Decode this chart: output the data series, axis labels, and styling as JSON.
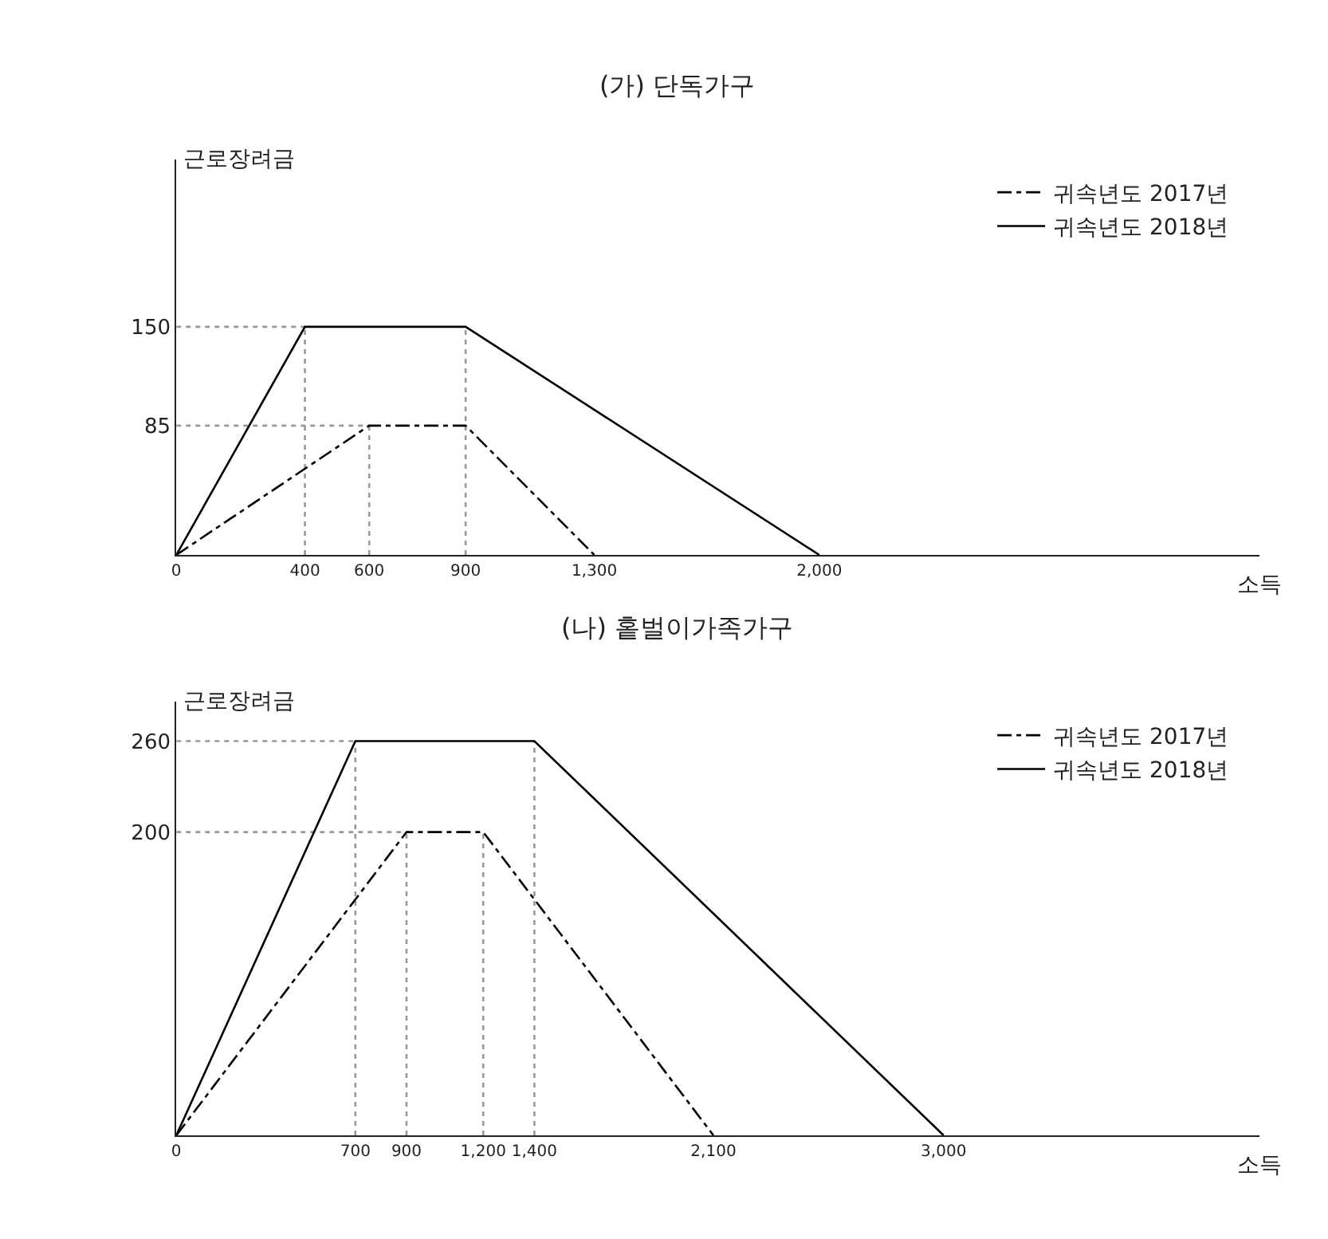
{
  "chart_data": [
    {
      "type": "line",
      "title": "(가) 단독가구",
      "xlabel": "소득",
      "ylabel": "근로장려금",
      "xlim": [
        0,
        3370
      ],
      "ylim": [
        0,
        260
      ],
      "xticks": [
        0,
        400,
        600,
        900,
        {
          "value": 1300,
          "label": "1,300"
        },
        {
          "value": 2000,
          "label": "2,000"
        }
      ],
      "yticks": [
        85,
        150
      ],
      "legend": "top right",
      "series": [
        {
          "color": "#999999",
          "line_style": "dotted",
          "x": [
            0,
            400
          ],
          "values": [
            150,
            150
          ]
        },
        {
          "color": "#999999",
          "line_style": "dotted",
          "x": [
            0,
            600
          ],
          "values": [
            85,
            85
          ]
        },
        {
          "color": "#999999",
          "line_style": "dotted",
          "x": [
            400,
            400
          ],
          "values": [
            0,
            150
          ]
        },
        {
          "color": "#999999",
          "line_style": "dotted",
          "x": [
            600,
            600
          ],
          "values": [
            0,
            85
          ]
        },
        {
          "color": "#999999",
          "line_style": "dotted",
          "x": [
            900,
            900
          ],
          "values": [
            0,
            150
          ]
        },
        {
          "name": "귀속년도 2017년",
          "color": "#000000",
          "line_style": "dashdot",
          "x": [
            0,
            600,
            900,
            1300
          ],
          "values": [
            0,
            85,
            85,
            0
          ]
        },
        {
          "name": "귀속년도 2018년",
          "color": "#000000",
          "line_style": "solid",
          "x": [
            0,
            400,
            900,
            2000
          ],
          "values": [
            0,
            150,
            150,
            0
          ]
        }
      ]
    },
    {
      "type": "line",
      "title": "(나) 홑벌이가족가구",
      "xlabel": "소득",
      "ylabel": "근로장려금",
      "xlim": [
        0,
        4236
      ],
      "ylim": [
        0,
        286
      ],
      "xticks": [
        0,
        700,
        900,
        {
          "value": 1200,
          "label": "1,200"
        },
        {
          "value": 1400,
          "label": "1,400"
        },
        {
          "value": 2100,
          "label": "2,100"
        },
        {
          "value": 3000,
          "label": "3,000"
        }
      ],
      "yticks": [
        200,
        260
      ],
      "legend": "top right",
      "series": [
        {
          "color": "#999999",
          "line_style": "dotted",
          "x": [
            0,
            700
          ],
          "values": [
            260,
            260
          ]
        },
        {
          "color": "#999999",
          "line_style": "dotted",
          "x": [
            0,
            900
          ],
          "values": [
            200,
            200
          ]
        },
        {
          "color": "#999999",
          "line_style": "dotted",
          "x": [
            700,
            700
          ],
          "values": [
            0,
            260
          ]
        },
        {
          "color": "#999999",
          "line_style": "dotted",
          "x": [
            900,
            900
          ],
          "values": [
            0,
            200
          ]
        },
        {
          "color": "#999999",
          "line_style": "dotted",
          "x": [
            1200,
            1200
          ],
          "values": [
            0,
            200
          ]
        },
        {
          "color": "#999999",
          "line_style": "dotted",
          "x": [
            1400,
            1400
          ],
          "values": [
            0,
            260
          ]
        },
        {
          "name": "귀속년도 2017년",
          "color": "#000000",
          "line_style": "dashdot",
          "x": [
            0,
            900,
            1200,
            2100
          ],
          "values": [
            0,
            200,
            200,
            0
          ]
        },
        {
          "name": "귀속년도 2018년",
          "color": "#000000",
          "line_style": "solid",
          "x": [
            0,
            700,
            1400,
            3000
          ],
          "values": [
            0,
            260,
            260,
            0
          ]
        }
      ]
    }
  ]
}
